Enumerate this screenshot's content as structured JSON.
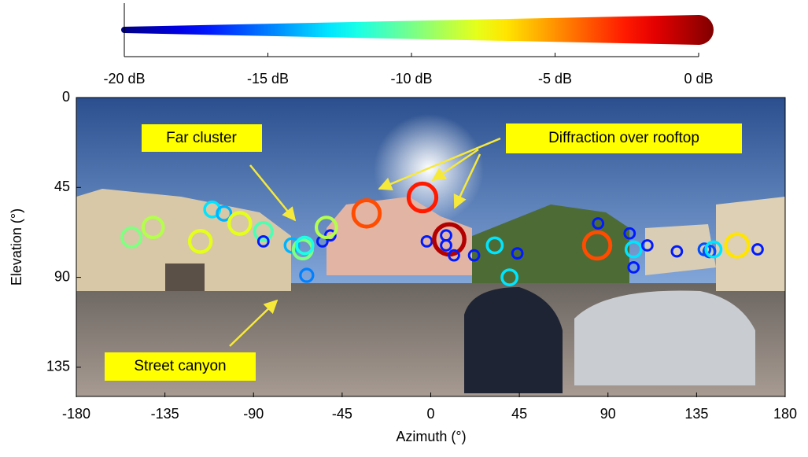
{
  "chart_data": {
    "type": "scatter",
    "xlabel": "Azimuth (°)",
    "ylabel": "Elevation (°)",
    "xlim": [
      -180,
      180
    ],
    "xticks": [
      -180,
      -135,
      -90,
      -45,
      0,
      45,
      90,
      135,
      180
    ],
    "ylim": [
      0,
      150
    ],
    "yticks": [
      0,
      45,
      90,
      135
    ],
    "y_inverted": true,
    "colormap": "jet",
    "clim": [
      -20,
      0
    ],
    "colorbar_ticks": [
      {
        "value": -20,
        "label": "-20 dB"
      },
      {
        "value": -15,
        "label": "-15 dB"
      },
      {
        "value": -10,
        "label": "-10 dB"
      },
      {
        "value": -5,
        "label": "-5 dB"
      },
      {
        "value": 0,
        "label": "0 dB"
      }
    ],
    "x": [
      -152,
      -141,
      -117,
      -111,
      -105,
      -97,
      -85,
      -85,
      -70.5,
      -65,
      -64,
      -63,
      -55,
      -51,
      -53,
      -32.6,
      -4.2,
      -2,
      9.4,
      7.8,
      7.8,
      11.8,
      22,
      32.5,
      44,
      40,
      84.5,
      85,
      101,
      103,
      110,
      103,
      125,
      139,
      141.5,
      143.6,
      155.6,
      166
    ],
    "values": [
      70,
      65,
      72,
      56,
      58,
      63,
      67,
      72,
      74,
      76,
      74,
      89,
      72,
      69,
      65,
      58,
      50,
      72,
      71,
      69,
      74,
      79,
      79,
      74,
      78,
      90,
      74,
      63,
      68,
      76,
      74,
      85,
      77,
      76,
      77,
      76,
      74,
      76
    ],
    "levels": [
      -10,
      -9,
      -8,
      -13,
      -14,
      -8,
      -11,
      -17,
      -14,
      -10,
      -12,
      -15,
      -17,
      -17,
      -9,
      -4,
      -3,
      -17,
      -1,
      -17,
      -17,
      -17,
      -17,
      -13,
      -17,
      -13,
      -4,
      -17,
      -17,
      -13,
      -17,
      -17,
      -17,
      -16,
      -16,
      -13,
      -7,
      -17
    ],
    "annotations": [
      {
        "text": "Far cluster"
      },
      {
        "text": "Diffraction over rooftop"
      },
      {
        "text": "Street canyon"
      }
    ]
  }
}
